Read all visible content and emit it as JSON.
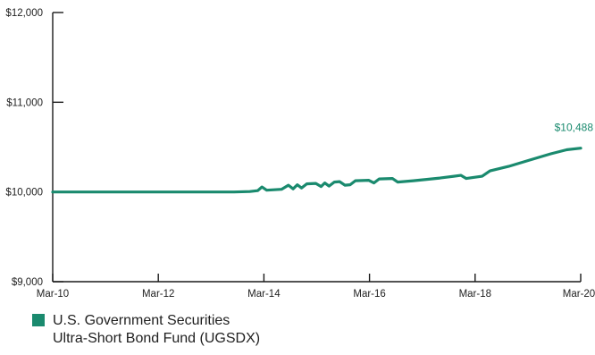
{
  "chart_data": {
    "type": "line",
    "title": "",
    "xlabel": "",
    "ylabel": "",
    "xlim": [
      2010.167,
      2020.167
    ],
    "ylim": [
      9000,
      12000
    ],
    "x_ticks": [
      {
        "x": 2010.167,
        "label": "Mar-10"
      },
      {
        "x": 2012.167,
        "label": "Mar-12"
      },
      {
        "x": 2014.167,
        "label": "Mar-14"
      },
      {
        "x": 2016.167,
        "label": "Mar-16"
      },
      {
        "x": 2018.167,
        "label": "Mar-18"
      },
      {
        "x": 2020.167,
        "label": "Mar-20"
      }
    ],
    "y_ticks": [
      {
        "y": 9000,
        "label": "$9,000"
      },
      {
        "y": 10000,
        "label": "$10,000"
      },
      {
        "y": 11000,
        "label": "$11,000"
      },
      {
        "y": 12000,
        "label": "$12,000"
      }
    ],
    "end_label": "$10,488",
    "color": "#1a8a6e",
    "series": [
      {
        "name": "U.S. Government Securities Ultra-Short Bond Fund (UGSDX)",
        "points": [
          [
            2010.167,
            10000
          ],
          [
            2011.0,
            10000
          ],
          [
            2012.0,
            10000
          ],
          [
            2013.0,
            10000
          ],
          [
            2013.6,
            10000
          ],
          [
            2013.9,
            10005
          ],
          [
            2014.05,
            10015
          ],
          [
            2014.13,
            10055
          ],
          [
            2014.22,
            10020
          ],
          [
            2014.5,
            10030
          ],
          [
            2014.63,
            10075
          ],
          [
            2014.72,
            10035
          ],
          [
            2014.8,
            10080
          ],
          [
            2014.88,
            10045
          ],
          [
            2014.98,
            10090
          ],
          [
            2015.15,
            10095
          ],
          [
            2015.25,
            10060
          ],
          [
            2015.32,
            10100
          ],
          [
            2015.4,
            10065
          ],
          [
            2015.5,
            10110
          ],
          [
            2015.6,
            10115
          ],
          [
            2015.7,
            10075
          ],
          [
            2015.8,
            10080
          ],
          [
            2015.9,
            10125
          ],
          [
            2016.15,
            10130
          ],
          [
            2016.25,
            10100
          ],
          [
            2016.35,
            10145
          ],
          [
            2016.6,
            10150
          ],
          [
            2016.7,
            10110
          ],
          [
            2017.0,
            10125
          ],
          [
            2017.5,
            10155
          ],
          [
            2017.9,
            10185
          ],
          [
            2018.0,
            10150
          ],
          [
            2018.3,
            10175
          ],
          [
            2018.45,
            10235
          ],
          [
            2018.8,
            10285
          ],
          [
            2019.2,
            10355
          ],
          [
            2019.6,
            10425
          ],
          [
            2019.9,
            10470
          ],
          [
            2020.167,
            10488
          ]
        ]
      }
    ],
    "legend": {
      "position": "bottom-left",
      "lines": [
        "U.S. Government Securities",
        "Ultra-Short Bond Fund (UGSDX)"
      ]
    }
  }
}
